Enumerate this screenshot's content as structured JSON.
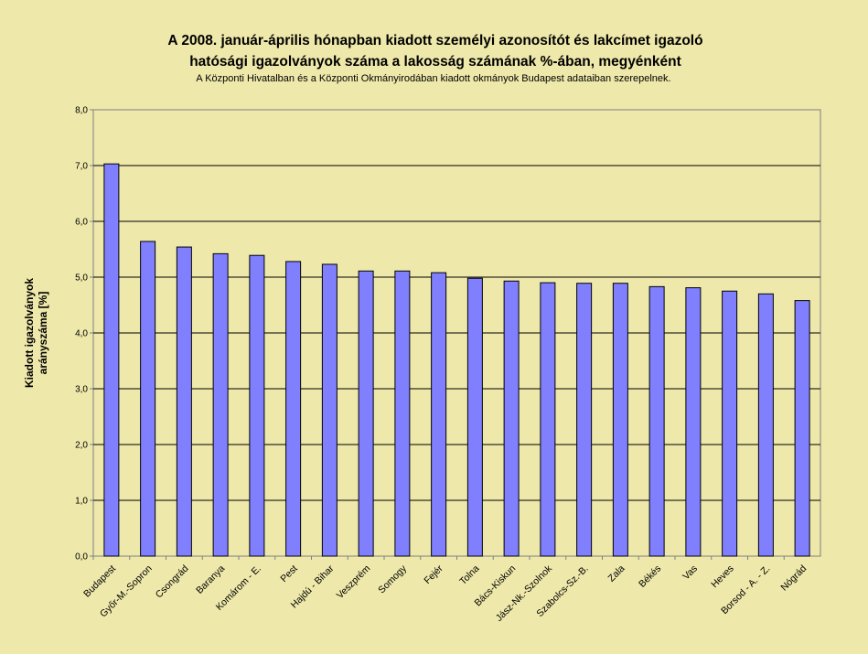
{
  "chart_data": {
    "type": "bar",
    "title_lines": [
      "A 2008. január-április hónapban kiadott személyi azonosítót és lakcímet igazoló",
      "hatósági igazolványok száma a lakosság  számának %-ában, megyénként"
    ],
    "subtitle": "A Központi Hivatalban és a Központi Okmányirodában kiadott okmányok Budapest adataiban szerepelnek.",
    "ylabel_lines": [
      "Kiadott igazolványok",
      "arányszáma [%]"
    ],
    "xlabel": "",
    "categories": [
      "Budapest",
      "Győr-M.-Sopron",
      "Csongrád",
      "Baranya",
      "Komárom - E.",
      "Pest",
      "Hajdú - Bihar",
      "Veszprém",
      "Somogy",
      "Fejér",
      "Tolna",
      "Bács-Kiskun",
      "Jász-Nk.-Szolnok",
      "Szabolcs-Sz.-B.",
      "Zala",
      "Békés",
      "Vas",
      "Heves",
      "Borsod - A. - Z.",
      "Nógrád"
    ],
    "values": [
      7.03,
      5.64,
      5.54,
      5.42,
      5.39,
      5.28,
      5.23,
      5.11,
      5.11,
      5.08,
      4.98,
      4.93,
      4.9,
      4.89,
      4.89,
      4.83,
      4.81,
      4.75,
      4.7,
      4.58
    ],
    "y_ticks": [
      "0,0",
      "1,0",
      "2,0",
      "3,0",
      "4,0",
      "5,0",
      "6,0",
      "7,0",
      "8,0"
    ],
    "ylim": [
      0,
      8
    ],
    "grid": true,
    "legend": "none",
    "colors": {
      "background": "#EEE8AA",
      "plot_background": "#EEE8AA",
      "bar_fill": "#8080FF",
      "bar_stroke": "#000000",
      "grid": "#000000",
      "axis": "#808080"
    }
  }
}
